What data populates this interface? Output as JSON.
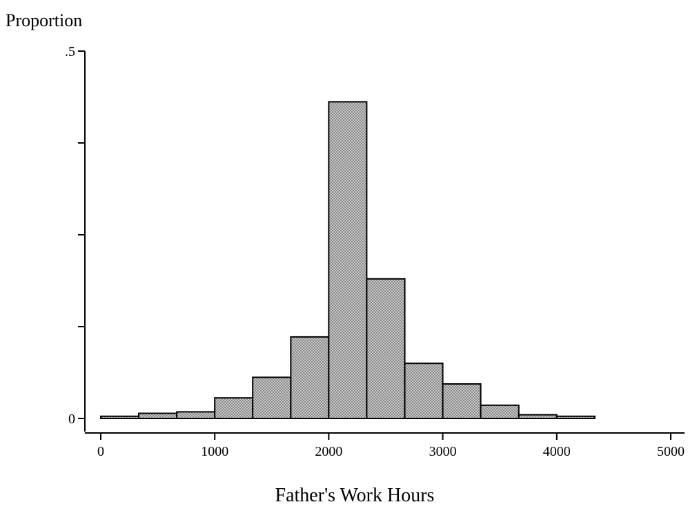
{
  "chart_data": {
    "type": "bar",
    "title": "",
    "ylabel": "Proportion",
    "xlabel": "Father's Work Hours",
    "xlim": [
      0,
      5000
    ],
    "ylim": [
      0,
      0.5
    ],
    "x_ticks": [
      0,
      1000,
      2000,
      3000,
      4000,
      5000
    ],
    "x_tick_labels": [
      "0",
      "1000",
      "2000",
      "3000",
      "4000",
      "5000"
    ],
    "y_ticks": [
      0,
      0.125,
      0.25,
      0.375,
      0.5
    ],
    "y_tick_labels": [
      "0",
      "",
      "",
      "",
      ".5"
    ],
    "grid": false,
    "bin_edges": [
      0,
      333,
      667,
      1000,
      1333,
      1667,
      2000,
      2333,
      2667,
      3000,
      3333,
      3667,
      4000,
      4333
    ],
    "values": [
      0.003,
      0.007,
      0.009,
      0.028,
      0.056,
      0.111,
      0.431,
      0.19,
      0.075,
      0.047,
      0.018,
      0.005,
      0.003
    ],
    "bar_color": "#d4d4d4",
    "pattern": "crosshatch"
  }
}
